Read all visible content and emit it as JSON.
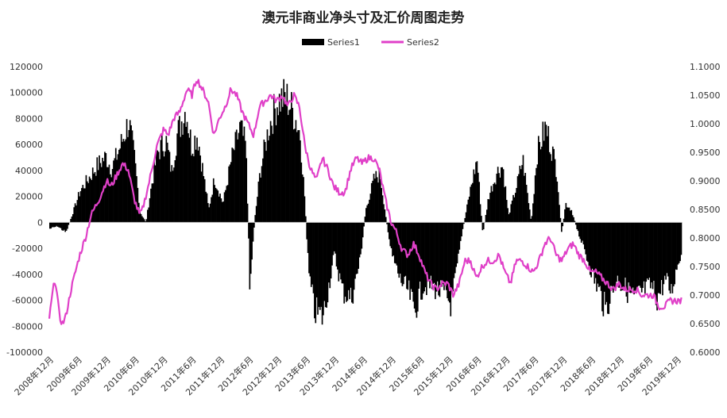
{
  "chart_data": {
    "type": "bar+line",
    "title": "澳元非商业净头寸及汇价周图走势",
    "legend": [
      {
        "name": "Series1",
        "color": "#000000",
        "kind": "bar"
      },
      {
        "name": "Series2",
        "color": "#e040c8",
        "kind": "line"
      }
    ],
    "legend_position": "top-center",
    "y_left": {
      "min": -100000,
      "max": 120000,
      "step": 20000,
      "ticks": [
        "-100000",
        "-80000",
        "-60000",
        "-40000",
        "-20000",
        "0",
        "20000",
        "40000",
        "60000",
        "80000",
        "100000",
        "120000"
      ]
    },
    "y_right": {
      "min": 0.6,
      "max": 1.1,
      "step": 0.05,
      "ticks": [
        "0.6000",
        "0.6500",
        "0.7000",
        "0.7500",
        "0.8000",
        "0.8500",
        "0.9000",
        "0.9500",
        "1.0000",
        "1.0500",
        "1.1000"
      ]
    },
    "x_range": [
      2008.917,
      2020.0
    ],
    "x_ticks": [
      "2008年12月",
      "2009年6月",
      "2009年12月",
      "2010年6月",
      "2010年12月",
      "2011年6月",
      "2011年12月",
      "2012年6月",
      "2012年12月",
      "2013年6月",
      "2013年12月",
      "2014年6月",
      "2014年12月",
      "2015年6月",
      "2015年12月",
      "2016年6月",
      "2016年12月",
      "2017年6月",
      "2017年12月",
      "2018年6月",
      "2018年12月",
      "2019年6月",
      "2019年12月"
    ],
    "grid": false,
    "series1_keypoints": [
      [
        2008.92,
        -5000
      ],
      [
        2009.05,
        -3000
      ],
      [
        2009.2,
        -8000
      ],
      [
        2009.3,
        5000
      ],
      [
        2009.45,
        25000
      ],
      [
        2009.6,
        35000
      ],
      [
        2009.75,
        45000
      ],
      [
        2009.9,
        52000
      ],
      [
        2010.0,
        42000
      ],
      [
        2010.15,
        60000
      ],
      [
        2010.3,
        80000
      ],
      [
        2010.4,
        50000
      ],
      [
        2010.5,
        8000
      ],
      [
        2010.6,
        0
      ],
      [
        2010.7,
        30000
      ],
      [
        2010.8,
        55000
      ],
      [
        2010.95,
        65000
      ],
      [
        2011.05,
        40000
      ],
      [
        2011.15,
        70000
      ],
      [
        2011.3,
        90000
      ],
      [
        2011.4,
        60000
      ],
      [
        2011.5,
        70000
      ],
      [
        2011.6,
        40000
      ],
      [
        2011.7,
        10000
      ],
      [
        2011.8,
        35000
      ],
      [
        2011.95,
        15000
      ],
      [
        2012.1,
        50000
      ],
      [
        2012.25,
        75000
      ],
      [
        2012.35,
        60000
      ],
      [
        2012.42,
        -50000
      ],
      [
        2012.5,
        0
      ],
      [
        2012.6,
        40000
      ],
      [
        2012.75,
        75000
      ],
      [
        2012.9,
        95000
      ],
      [
        2013.05,
        100000
      ],
      [
        2013.2,
        85000
      ],
      [
        2013.3,
        70000
      ],
      [
        2013.38,
        20000
      ],
      [
        2013.45,
        -40000
      ],
      [
        2013.55,
        -70000
      ],
      [
        2013.7,
        -75000
      ],
      [
        2013.8,
        -50000
      ],
      [
        2013.9,
        -25000
      ],
      [
        2014.05,
        -55000
      ],
      [
        2014.2,
        -60000
      ],
      [
        2014.35,
        -30000
      ],
      [
        2014.45,
        10000
      ],
      [
        2014.6,
        35000
      ],
      [
        2014.7,
        38000
      ],
      [
        2014.8,
        5000
      ],
      [
        2014.9,
        -25000
      ],
      [
        2015.05,
        -45000
      ],
      [
        2015.2,
        -55000
      ],
      [
        2015.3,
        -70000
      ],
      [
        2015.45,
        -50000
      ],
      [
        2015.6,
        -50000
      ],
      [
        2015.75,
        -55000
      ],
      [
        2015.85,
        -58000
      ],
      [
        2015.95,
        -65000
      ],
      [
        2016.05,
        -35000
      ],
      [
        2016.15,
        -5000
      ],
      [
        2016.3,
        30000
      ],
      [
        2016.4,
        50000
      ],
      [
        2016.5,
        -10000
      ],
      [
        2016.6,
        20000
      ],
      [
        2016.75,
        40000
      ],
      [
        2016.85,
        45000
      ],
      [
        2016.95,
        5000
      ],
      [
        2017.1,
        30000
      ],
      [
        2017.2,
        50000
      ],
      [
        2017.35,
        0
      ],
      [
        2017.45,
        55000
      ],
      [
        2017.6,
        75000
      ],
      [
        2017.7,
        60000
      ],
      [
        2017.8,
        40000
      ],
      [
        2017.88,
        -10000
      ],
      [
        2017.95,
        15000
      ],
      [
        2018.05,
        10000
      ],
      [
        2018.15,
        -5000
      ],
      [
        2018.3,
        -25000
      ],
      [
        2018.45,
        -45000
      ],
      [
        2018.55,
        -55000
      ],
      [
        2018.65,
        -70000
      ],
      [
        2018.75,
        -55000
      ],
      [
        2018.85,
        -45000
      ],
      [
        2018.95,
        -50000
      ],
      [
        2019.05,
        -55000
      ],
      [
        2019.15,
        -60000
      ],
      [
        2019.3,
        -55000
      ],
      [
        2019.45,
        -50000
      ],
      [
        2019.55,
        -60000
      ],
      [
        2019.7,
        -45000
      ],
      [
        2019.8,
        -55000
      ],
      [
        2019.9,
        -35000
      ],
      [
        2020.0,
        -20000
      ]
    ],
    "series2_keypoints": [
      [
        2008.92,
        0.66
      ],
      [
        2008.97,
        0.7
      ],
      [
        2009.02,
        0.73
      ],
      [
        2009.1,
        0.66
      ],
      [
        2009.15,
        0.65
      ],
      [
        2009.2,
        0.66
      ],
      [
        2009.3,
        0.71
      ],
      [
        2009.45,
        0.77
      ],
      [
        2009.55,
        0.8
      ],
      [
        2009.65,
        0.84
      ],
      [
        2009.8,
        0.87
      ],
      [
        2009.92,
        0.9
      ],
      [
        2010.0,
        0.89
      ],
      [
        2010.1,
        0.91
      ],
      [
        2010.2,
        0.93
      ],
      [
        2010.3,
        0.92
      ],
      [
        2010.4,
        0.87
      ],
      [
        2010.5,
        0.84
      ],
      [
        2010.55,
        0.85
      ],
      [
        2010.65,
        0.89
      ],
      [
        2010.8,
        0.96
      ],
      [
        2010.92,
        0.99
      ],
      [
        2011.0,
        0.98
      ],
      [
        2011.1,
        1.01
      ],
      [
        2011.2,
        1.02
      ],
      [
        2011.33,
        1.06
      ],
      [
        2011.42,
        1.05
      ],
      [
        2011.5,
        1.08
      ],
      [
        2011.6,
        1.06
      ],
      [
        2011.7,
        1.04
      ],
      [
        2011.8,
        0.98
      ],
      [
        2011.9,
        1.01
      ],
      [
        2012.0,
        1.03
      ],
      [
        2012.1,
        1.06
      ],
      [
        2012.2,
        1.05
      ],
      [
        2012.3,
        1.02
      ],
      [
        2012.4,
        1.0
      ],
      [
        2012.5,
        0.98
      ],
      [
        2012.6,
        1.03
      ],
      [
        2012.7,
        1.04
      ],
      [
        2012.8,
        1.05
      ],
      [
        2012.9,
        1.04
      ],
      [
        2013.0,
        1.05
      ],
      [
        2013.1,
        1.03
      ],
      [
        2013.2,
        1.05
      ],
      [
        2013.3,
        1.03
      ],
      [
        2013.4,
        0.96
      ],
      [
        2013.5,
        0.92
      ],
      [
        2013.6,
        0.9
      ],
      [
        2013.7,
        0.94
      ],
      [
        2013.8,
        0.92
      ],
      [
        2013.9,
        0.89
      ],
      [
        2014.0,
        0.88
      ],
      [
        2014.1,
        0.88
      ],
      [
        2014.2,
        0.92
      ],
      [
        2014.3,
        0.94
      ],
      [
        2014.4,
        0.93
      ],
      [
        2014.5,
        0.94
      ],
      [
        2014.6,
        0.94
      ],
      [
        2014.7,
        0.92
      ],
      [
        2014.8,
        0.87
      ],
      [
        2014.9,
        0.83
      ],
      [
        2015.0,
        0.81
      ],
      [
        2015.1,
        0.78
      ],
      [
        2015.2,
        0.77
      ],
      [
        2015.3,
        0.79
      ],
      [
        2015.4,
        0.77
      ],
      [
        2015.5,
        0.74
      ],
      [
        2015.6,
        0.72
      ],
      [
        2015.7,
        0.71
      ],
      [
        2015.8,
        0.72
      ],
      [
        2015.9,
        0.72
      ],
      [
        2016.0,
        0.7
      ],
      [
        2016.1,
        0.72
      ],
      [
        2016.2,
        0.76
      ],
      [
        2016.3,
        0.76
      ],
      [
        2016.4,
        0.73
      ],
      [
        2016.5,
        0.75
      ],
      [
        2016.6,
        0.76
      ],
      [
        2016.7,
        0.76
      ],
      [
        2016.8,
        0.77
      ],
      [
        2016.9,
        0.74
      ],
      [
        2017.0,
        0.72
      ],
      [
        2017.1,
        0.76
      ],
      [
        2017.2,
        0.76
      ],
      [
        2017.3,
        0.75
      ],
      [
        2017.4,
        0.74
      ],
      [
        2017.5,
        0.76
      ],
      [
        2017.6,
        0.79
      ],
      [
        2017.7,
        0.8
      ],
      [
        2017.8,
        0.77
      ],
      [
        2017.9,
        0.76
      ],
      [
        2018.0,
        0.78
      ],
      [
        2018.1,
        0.79
      ],
      [
        2018.2,
        0.77
      ],
      [
        2018.3,
        0.76
      ],
      [
        2018.4,
        0.74
      ],
      [
        2018.5,
        0.74
      ],
      [
        2018.6,
        0.73
      ],
      [
        2018.7,
        0.72
      ],
      [
        2018.8,
        0.71
      ],
      [
        2018.9,
        0.72
      ],
      [
        2019.0,
        0.71
      ],
      [
        2019.1,
        0.71
      ],
      [
        2019.2,
        0.71
      ],
      [
        2019.3,
        0.7
      ],
      [
        2019.4,
        0.7
      ],
      [
        2019.5,
        0.7
      ],
      [
        2019.6,
        0.68
      ],
      [
        2019.7,
        0.68
      ],
      [
        2019.8,
        0.69
      ],
      [
        2019.9,
        0.69
      ],
      [
        2020.0,
        0.69
      ]
    ]
  }
}
